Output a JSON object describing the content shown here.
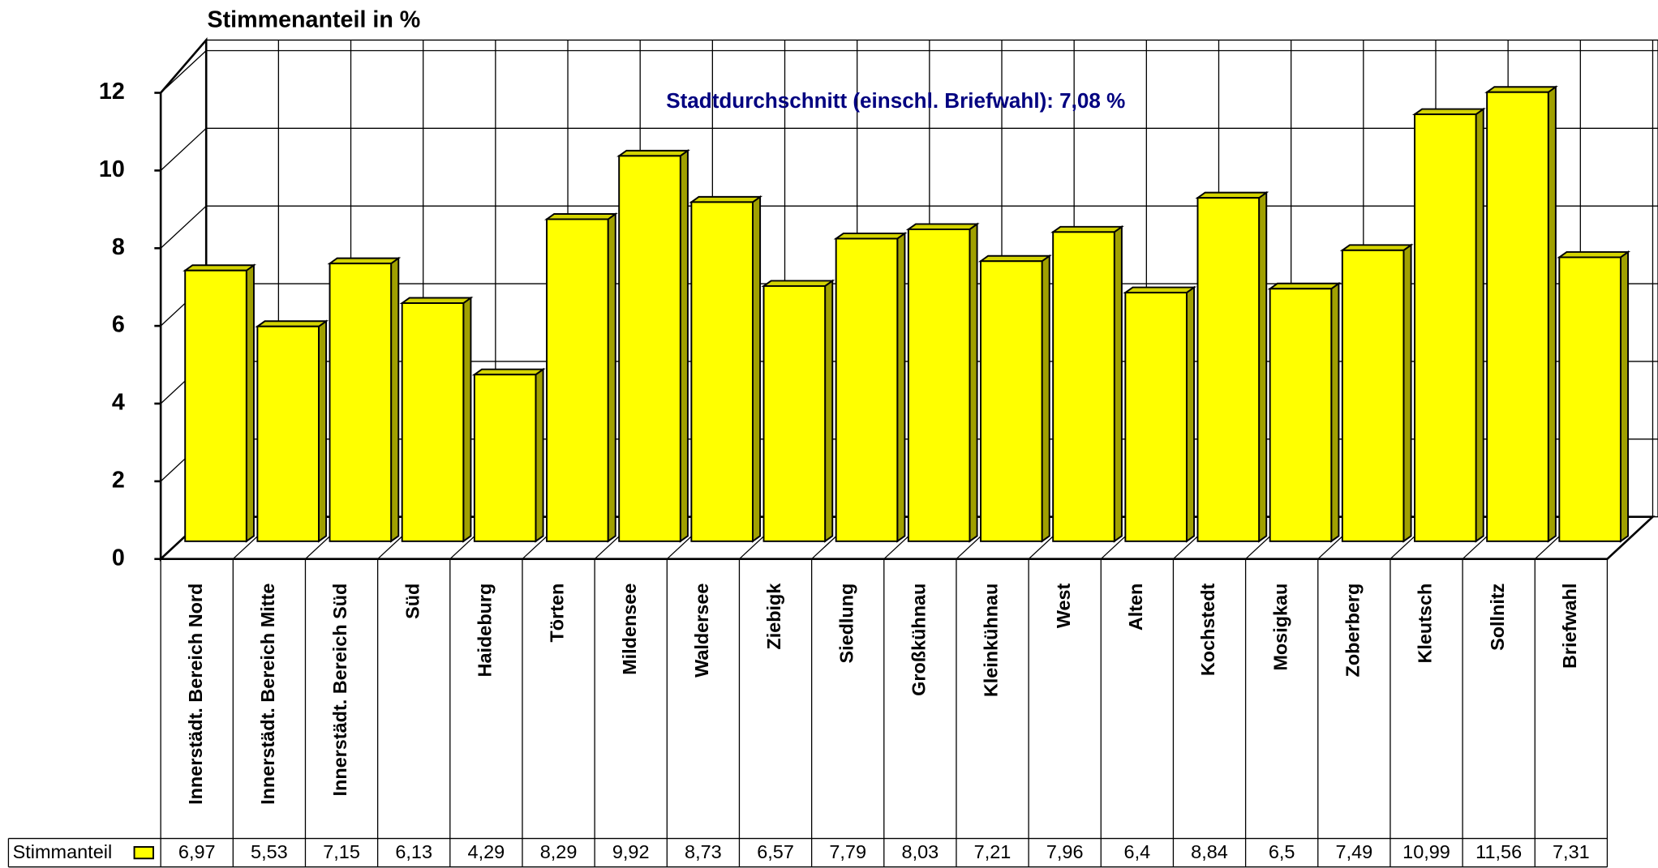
{
  "chart_data": {
    "type": "bar",
    "title": "Stimmenanteil in %",
    "annotation": "Stadtdurchschnitt (einschl. Briefwahl): 7,08 %",
    "categories": [
      "Innerstädt. Bereich Nord",
      "Innerstädt. Bereich Mitte",
      "Innerstädt. Bereich Süd",
      "Süd",
      "Haideburg",
      "Törten",
      "Mildensee",
      "Waldersee",
      "Ziebigk",
      "Siedlung",
      "Großkühnau",
      "Kleinkühnau",
      "West",
      "Alten",
      "Kochstedt",
      "Mosigkau",
      "Zoberberg",
      "Kleutsch",
      "Sollnitz",
      "Briefwahl"
    ],
    "series": [
      {
        "name": "Stimmanteil",
        "color": "#ffff00",
        "values": [
          6.97,
          5.53,
          7.15,
          6.13,
          4.29,
          8.29,
          9.92,
          8.73,
          6.57,
          7.79,
          8.03,
          7.21,
          7.96,
          6.4,
          8.84,
          6.5,
          7.49,
          10.99,
          11.56,
          7.31
        ],
        "value_labels": [
          "6,97",
          "5,53",
          "7,15",
          "6,13",
          "4,29",
          "8,29",
          "9,92",
          "8,73",
          "6,57",
          "7,79",
          "8,03",
          "7,21",
          "7,96",
          "6,4",
          "8,84",
          "6,5",
          "7,49",
          "10,99",
          "11,56",
          "7,31"
        ]
      }
    ],
    "ylim": [
      0,
      12
    ],
    "yticks": [
      0,
      2,
      4,
      6,
      8,
      10,
      12
    ],
    "grid": true
  }
}
